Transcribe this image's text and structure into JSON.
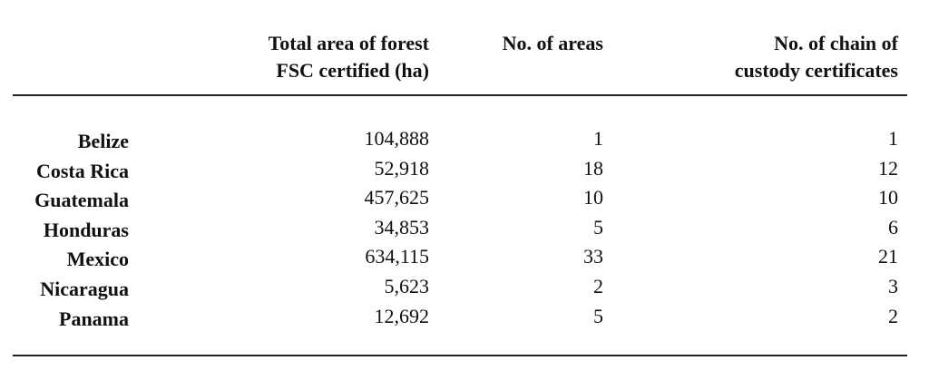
{
  "table": {
    "header": [
      [
        "Total area of forest",
        "FSC certified (ha)"
      ],
      [
        "No. of areas"
      ],
      [
        "No. of chain of",
        "custody certificates"
      ]
    ],
    "rows": [
      [
        "Belize",
        "104,888",
        "1",
        "1"
      ],
      [
        "Costa Rica",
        "52,918",
        "18",
        "12"
      ],
      [
        "Guatemala",
        "457,625",
        "10",
        "10"
      ],
      [
        "Honduras",
        "34,853",
        "5",
        "6"
      ],
      [
        "Mexico",
        "634,115",
        "33",
        "21"
      ],
      [
        "Nicaragua",
        "5,623",
        "2",
        "3"
      ],
      [
        "Panama",
        "12,692",
        "5",
        "2"
      ]
    ]
  }
}
